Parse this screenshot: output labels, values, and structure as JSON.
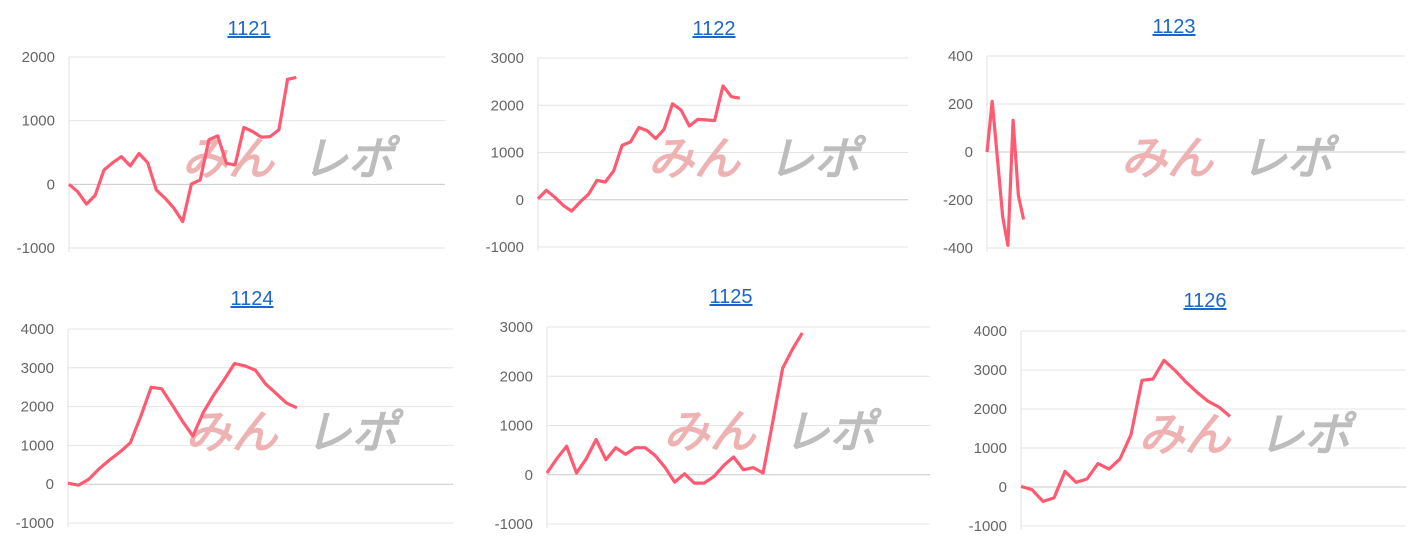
{
  "watermark": {
    "part1": "みん",
    "part2": "レポ"
  },
  "line_color": "#ff5a72",
  "chart_data": [
    {
      "type": "line",
      "title": "1121",
      "ylim": [
        -1000,
        2000
      ],
      "yticks": [
        2000,
        1000,
        0,
        -1000
      ],
      "xmax": 43,
      "y": [
        0,
        -115,
        -310,
        -170,
        225,
        340,
        435,
        290,
        485,
        340,
        -90,
        -220,
        -375,
        -585,
        5,
        70,
        700,
        760,
        330,
        305,
        895,
        830,
        740,
        750,
        855,
        1650,
        1680
      ]
    },
    {
      "type": "line",
      "title": "1122",
      "ylim": [
        -1000,
        3000
      ],
      "yticks": [
        3000,
        2000,
        1000,
        0,
        -1000
      ],
      "xmax": 44,
      "y": [
        20,
        200,
        55,
        -120,
        -240,
        -50,
        115,
        410,
        375,
        610,
        1150,
        1225,
        1530,
        1460,
        1295,
        1490,
        2030,
        1900,
        1560,
        1700,
        1690,
        1675,
        2410,
        2180,
        2150
      ]
    },
    {
      "type": "line",
      "title": "1123",
      "ylim": [
        -400,
        400
      ],
      "yticks": [
        400,
        200,
        0,
        -200,
        -400
      ],
      "xmax": 80,
      "y": [
        0,
        211,
        -30,
        -270,
        -389,
        132,
        -182,
        -281
      ]
    },
    {
      "type": "line",
      "title": "1124",
      "ylim": [
        -1000,
        4000
      ],
      "yticks": [
        4000,
        3000,
        2000,
        1000,
        0,
        -1000
      ],
      "xmax": 37,
      "y": [
        25,
        -25,
        130,
        400,
        625,
        830,
        1070,
        1750,
        2500,
        2460,
        2050,
        1620,
        1240,
        1850,
        2300,
        2690,
        3110,
        3050,
        2940,
        2580,
        2340,
        2090,
        1970
      ]
    },
    {
      "type": "line",
      "title": "1125",
      "ylim": [
        -1000,
        3000
      ],
      "yticks": [
        3000,
        2000,
        1000,
        0,
        -1000
      ],
      "xmax": 39,
      "y": [
        35,
        325,
        580,
        35,
        325,
        715,
        305,
        550,
        415,
        550,
        550,
        395,
        155,
        -150,
        20,
        -170,
        -170,
        -35,
        190,
        360,
        100,
        145,
        35,
        1090,
        2165,
        2550,
        2880
      ]
    },
    {
      "type": "line",
      "title": "1126",
      "ylim": [
        -1000,
        4000
      ],
      "yticks": [
        4000,
        3000,
        2000,
        1000,
        0,
        -1000
      ],
      "xmax": 35,
      "y": [
        15,
        -70,
        -370,
        -280,
        400,
        120,
        205,
        600,
        460,
        720,
        1340,
        2735,
        2770,
        3250,
        2990,
        2690,
        2430,
        2200,
        2050,
        1810
      ]
    }
  ]
}
